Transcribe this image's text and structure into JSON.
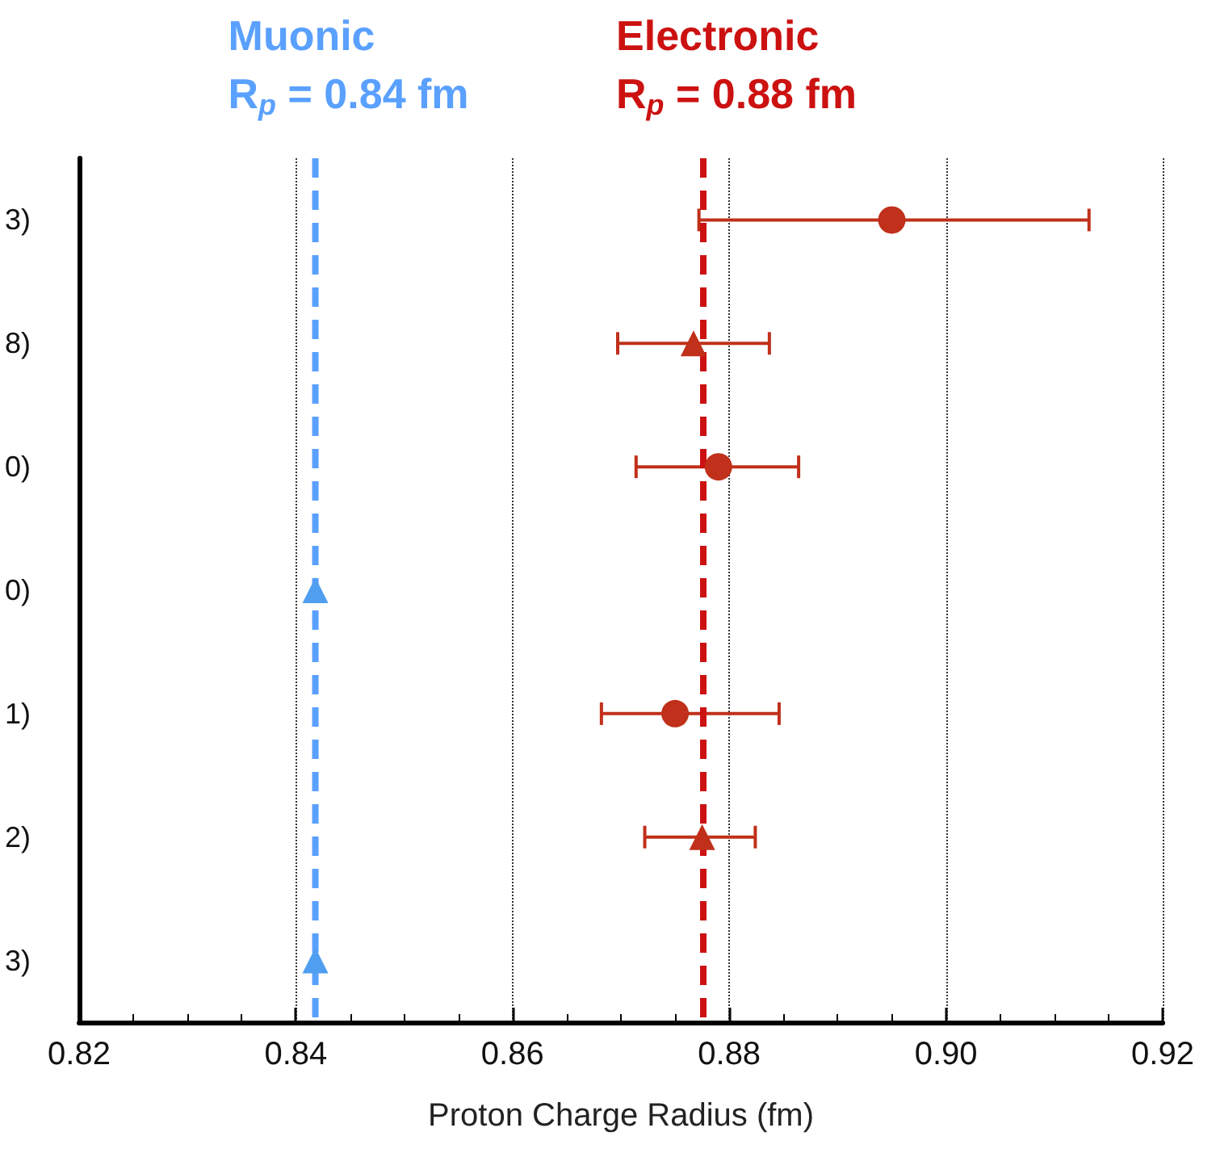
{
  "chart_data": {
    "type": "scatter",
    "orientation": "horizontal",
    "xlabel": "Proton Charge Radius (fm)",
    "categories": [
      "3)",
      "8)",
      "0)",
      "0)",
      "1)",
      "2)",
      "3)"
    ],
    "series": [
      {
        "color": "#c0301a",
        "marker": "circle",
        "values": [
          0.895,
          null,
          0.879,
          null,
          0.875,
          null,
          null
        ],
        "errors": [
          [
            0.8772,
            0.9132
          ],
          null,
          [
            0.8714,
            0.8864
          ],
          null,
          [
            0.8682,
            0.8846
          ],
          null,
          null
        ]
      },
      {
        "color": "#c0301a",
        "marker": "triangle",
        "values": [
          null,
          0.8767,
          null,
          null,
          null,
          0.8775,
          null
        ],
        "errors": [
          null,
          [
            0.8697,
            0.8837
          ],
          null,
          null,
          null,
          [
            0.8722,
            0.8824
          ],
          null
        ]
      },
      {
        "color": "#4f9ef0",
        "marker": "triangle",
        "values": [
          null,
          null,
          null,
          0.8418,
          null,
          null,
          0.8418
        ]
      }
    ],
    "xlim": [
      0.82,
      0.92
    ],
    "xticks": [
      {
        "value": 0.82,
        "label": "0.82"
      },
      {
        "value": 0.84,
        "label": "0.84"
      },
      {
        "value": 0.86,
        "label": "0.86"
      },
      {
        "value": 0.88,
        "label": "0.88"
      },
      {
        "value": 0.9,
        "label": "0.90"
      },
      {
        "value": 0.92,
        "label": "0.92"
      }
    ],
    "grid": "x",
    "ref_lines": [
      {
        "axis": "x",
        "value": 0.8418,
        "label": "Muonic\nR$_{p}$ = 0.84 fm",
        "color": "#5aa0ff",
        "line_style": "dashed"
      },
      {
        "axis": "x",
        "value": 0.8776,
        "label": "Electronic\nR$_{p}$ = 0.88 fm",
        "color": "#cc1111",
        "line_style": "dashed"
      }
    ]
  }
}
